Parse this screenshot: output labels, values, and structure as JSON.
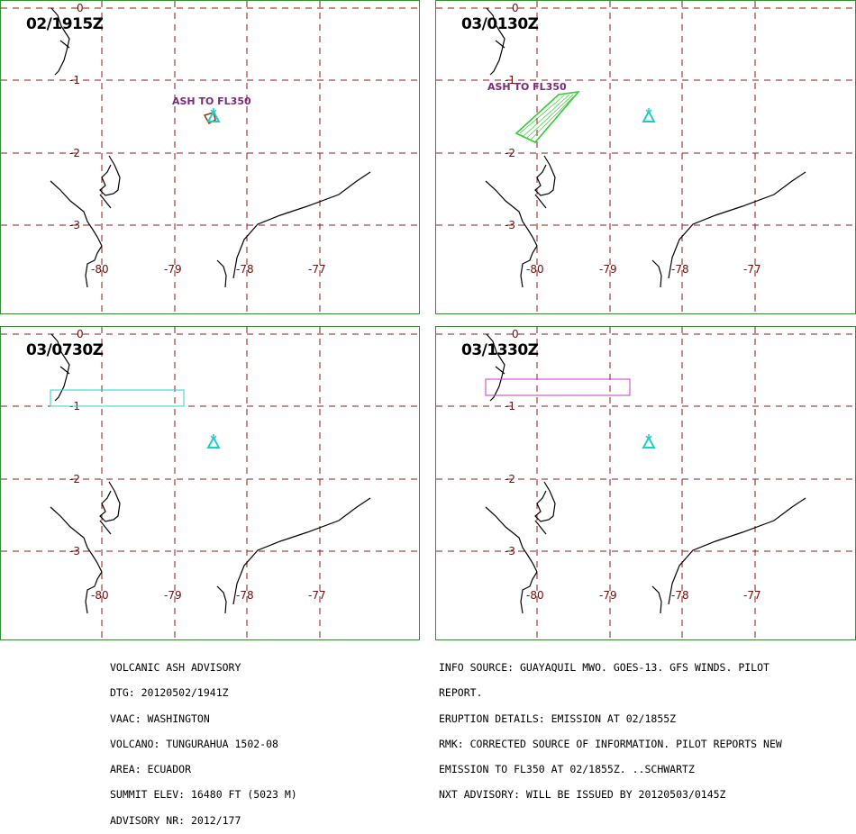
{
  "panels": [
    {
      "time": "02/1915Z",
      "lat_labels": [
        "0",
        "-1",
        "-2",
        "-3"
      ],
      "lon_labels": [
        "-80",
        "-79",
        "-78",
        "-77"
      ],
      "ash_label": "ASH TO FL350",
      "ash_color": "#8b3a0a",
      "ash_shape": "small-quad"
    },
    {
      "time": "03/0130Z",
      "lat_labels": [
        "0",
        "-1",
        "-2",
        "-3"
      ],
      "lon_labels": [
        "-80",
        "-79",
        "-78",
        "-77"
      ],
      "ash_label": "ASH TO FL350",
      "ash_color": "#33cc33",
      "ash_shape": "hatched-band"
    },
    {
      "time": "03/0730Z",
      "lat_labels": [
        "0",
        "-1",
        "-2",
        "-3"
      ],
      "lon_labels": [
        "-80",
        "-79",
        "-78",
        "-77"
      ],
      "ash_label": "",
      "ash_color": "#33cccc",
      "ash_shape": "rectangle"
    },
    {
      "time": "03/1330Z",
      "lat_labels": [
        "0",
        "-1",
        "-2",
        "-3"
      ],
      "lon_labels": [
        "-80",
        "-79",
        "-78",
        "-77"
      ],
      "ash_label": "",
      "ash_color": "#cc33cc",
      "ash_shape": "rectangle"
    }
  ],
  "volcano_icon": "volcano-icon",
  "volcano_color": "#22cccc",
  "advisory_left": [
    "VOLCANIC ASH ADVISORY",
    "DTG: 20120502/1941Z",
    "VAAC: WASHINGTON",
    "VOLCANO: TUNGURAHUA 1502-08",
    "AREA: ECUADOR",
    "SUMMIT ELEV: 16480 FT (5023 M)",
    "ADVISORY NR: 2012/177"
  ],
  "advisory_right": [
    "INFO SOURCE: GUAYAQUIL MWO. GOES-13. GFS WINDS. PILOT",
    "REPORT.",
    "ERUPTION DETAILS: EMISSION AT 02/1855Z",
    "RMK: CORRECTED SOURCE OF INFORMATION. PILOT REPORTS NEW",
    "EMISSION TO FL350 AT 02/1855Z. ..SCHWARTZ",
    "NXT ADVISORY: WILL BE ISSUED BY 20120503/0145Z"
  ]
}
